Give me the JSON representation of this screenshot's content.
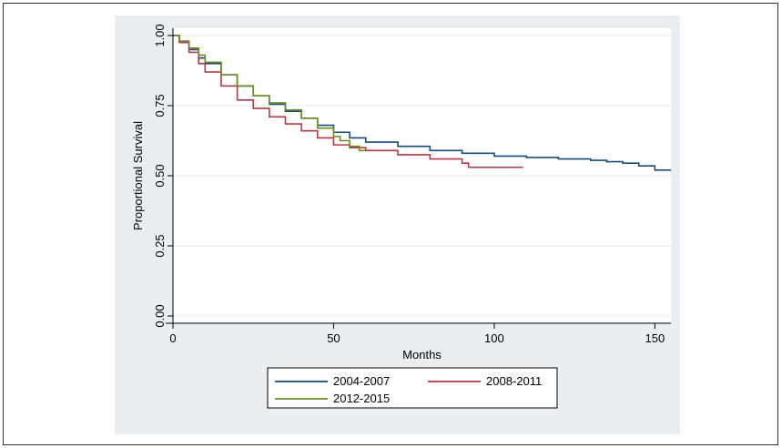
{
  "chart_data": {
    "type": "line",
    "title": "",
    "xlabel": "Months",
    "ylabel": "Proportional Survival",
    "xlim": [
      0,
      155
    ],
    "ylim": [
      0,
      1
    ],
    "xticks": [
      0,
      50,
      100,
      150
    ],
    "xtick_labels": [
      "0",
      "50",
      "100",
      "150"
    ],
    "yticks": [
      0,
      0.25,
      0.5,
      0.75,
      1
    ],
    "ytick_labels": [
      "0.00",
      "0.25",
      "0.50",
      "0.75",
      "1.00"
    ],
    "grid": true,
    "legend_position": "bottom",
    "step": true,
    "colors": {
      "figure_background": "#e9eef3",
      "plot_background": "#ffffff",
      "grid": "#e6ebef",
      "axis": "#000000"
    },
    "series": [
      {
        "name": "2004-2007",
        "color": "#1a4a7a",
        "x": [
          0,
          2,
          5,
          8,
          10,
          15,
          20,
          25,
          30,
          35,
          40,
          45,
          50,
          55,
          60,
          70,
          80,
          90,
          100,
          110,
          120,
          130,
          135,
          140,
          145,
          150,
          155
        ],
        "y": [
          1.0,
          0.98,
          0.95,
          0.92,
          0.9,
          0.86,
          0.82,
          0.785,
          0.755,
          0.73,
          0.705,
          0.68,
          0.655,
          0.635,
          0.62,
          0.605,
          0.59,
          0.58,
          0.57,
          0.565,
          0.56,
          0.555,
          0.55,
          0.545,
          0.535,
          0.52,
          0.52
        ]
      },
      {
        "name": "2008-2011",
        "color": "#b23a48",
        "x": [
          0,
          2,
          5,
          8,
          10,
          15,
          20,
          25,
          30,
          35,
          40,
          45,
          50,
          55,
          60,
          70,
          80,
          90,
          92,
          100,
          105,
          109
        ],
        "y": [
          1.0,
          0.975,
          0.94,
          0.9,
          0.87,
          0.82,
          0.77,
          0.74,
          0.71,
          0.685,
          0.66,
          0.635,
          0.61,
          0.6,
          0.59,
          0.575,
          0.56,
          0.545,
          0.53,
          0.53,
          0.53,
          0.53
        ]
      },
      {
        "name": "2012-2015",
        "color": "#6b8e23",
        "x": [
          0,
          2,
          5,
          8,
          10,
          15,
          20,
          25,
          30,
          35,
          40,
          45,
          50,
          52,
          55,
          58,
          60
        ],
        "y": [
          1.0,
          0.98,
          0.955,
          0.93,
          0.905,
          0.86,
          0.82,
          0.785,
          0.76,
          0.735,
          0.705,
          0.67,
          0.64,
          0.625,
          0.605,
          0.59,
          0.59
        ]
      }
    ]
  }
}
